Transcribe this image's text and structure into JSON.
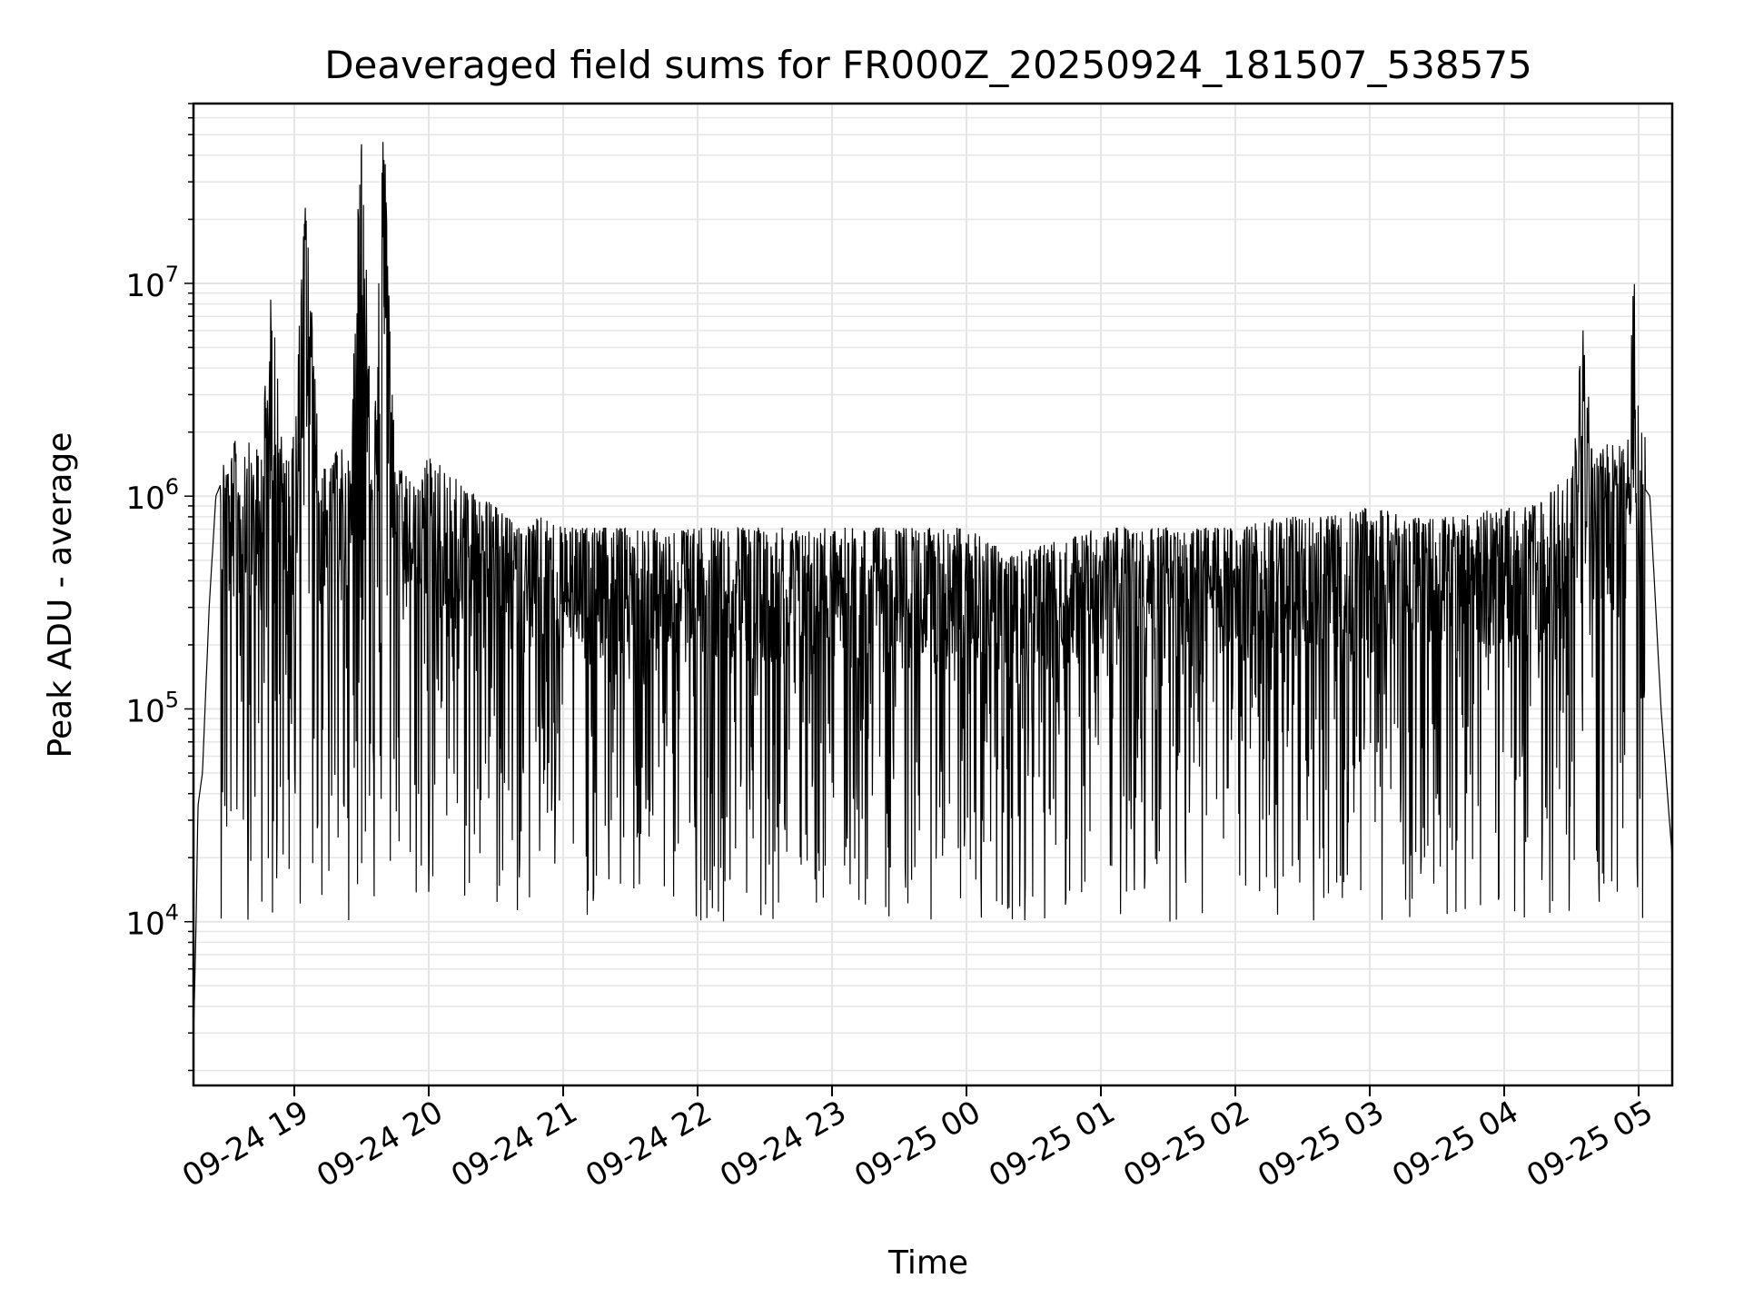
{
  "chart_data": {
    "type": "line",
    "title": "Deaveraged field sums for FR000Z_20250924_181507_538575",
    "xlabel": "Time",
    "ylabel": "Peak ADU - average",
    "yscale": "log",
    "ylim": [
      1700,
      70000000
    ],
    "xlim": [
      "2025-09-24 18:15",
      "2025-09-25 05:15"
    ],
    "grid": "on (major and minor)",
    "line_color": "#000000",
    "grid_color": "#e6e6e6",
    "x_ticks": [
      {
        "time": "2025-09-24 19:00",
        "label": "09-24 19"
      },
      {
        "time": "2025-09-24 20:00",
        "label": "09-24 20"
      },
      {
        "time": "2025-09-24 21:00",
        "label": "09-24 21"
      },
      {
        "time": "2025-09-24 22:00",
        "label": "09-24 22"
      },
      {
        "time": "2025-09-24 23:00",
        "label": "09-24 23"
      },
      {
        "time": "2025-09-25 00:00",
        "label": "09-25 00"
      },
      {
        "time": "2025-09-25 01:00",
        "label": "09-25 01"
      },
      {
        "time": "2025-09-25 02:00",
        "label": "09-25 02"
      },
      {
        "time": "2025-09-25 03:00",
        "label": "09-25 03"
      },
      {
        "time": "2025-09-25 04:00",
        "label": "09-25 04"
      },
      {
        "time": "2025-09-25 05:00",
        "label": "09-25 05"
      }
    ],
    "y_ticks": [
      {
        "value": 10000,
        "base": "10",
        "exp": "4"
      },
      {
        "value": 100000,
        "base": "10",
        "exp": "5"
      },
      {
        "value": 1000000,
        "base": "10",
        "exp": "6"
      },
      {
        "value": 10000000,
        "base": "10",
        "exp": "7"
      }
    ],
    "series": [
      {
        "x": [
          "2025-09-24 18:15",
          "2025-09-24 18:16",
          "2025-09-24 18:17",
          "2025-09-24 18:19",
          "2025-09-24 18:22",
          "2025-09-24 18:25",
          "2025-09-24 18:28",
          "2025-09-24 18:31",
          "2025-09-24 18:35",
          "2025-09-24 18:40",
          "2025-09-24 18:45",
          "2025-09-24 18:50",
          "2025-09-24 18:55",
          "2025-09-24 19:00",
          "2025-09-24 19:05",
          "2025-09-24 19:11",
          "2025-09-24 19:15",
          "2025-09-24 19:20",
          "2025-09-24 19:25",
          "2025-09-24 19:30",
          "2025-09-24 19:35",
          "2025-09-24 19:40",
          "2025-09-24 19:45",
          "2025-09-24 19:50",
          "2025-09-24 19:55",
          "2025-09-24 20:00",
          "2025-09-24 20:10",
          "2025-09-24 20:20",
          "2025-09-24 20:30",
          "2025-09-24 20:40",
          "2025-09-24 20:50",
          "2025-09-24 21:00",
          "2025-09-24 21:20",
          "2025-09-24 21:40",
          "2025-09-24 22:00",
          "2025-09-24 22:20",
          "2025-09-24 22:40",
          "2025-09-24 23:00",
          "2025-09-24 23:20",
          "2025-09-24 23:40",
          "2025-09-25 00:00",
          "2025-09-25 00:20",
          "2025-09-25 00:40",
          "2025-09-25 01:00",
          "2025-09-25 01:20",
          "2025-09-25 01:40",
          "2025-09-25 02:00",
          "2025-09-25 02:20",
          "2025-09-25 02:40",
          "2025-09-25 03:00",
          "2025-09-25 03:20",
          "2025-09-25 03:40",
          "2025-09-25 04:00",
          "2025-09-25 04:10",
          "2025-09-25 04:20",
          "2025-09-25 04:30",
          "2025-09-25 04:35",
          "2025-09-25 04:40",
          "2025-09-25 04:45",
          "2025-09-25 04:50",
          "2025-09-25 04:55",
          "2025-09-25 04:58",
          "2025-09-25 05:00",
          "2025-09-25 05:05",
          "2025-09-25 05:10",
          "2025-09-25 05:15"
        ],
        "y": [
          2800,
          8000,
          35000,
          50000,
          300000,
          1000000,
          1200000,
          900000,
          1100000,
          1000000,
          900000,
          6000000,
          800000,
          1100000,
          16000000,
          900000,
          700000,
          1000000,
          800000,
          45000000,
          600000,
          38000000,
          800000,
          700000,
          600000,
          900000,
          700000,
          600000,
          500000,
          400000,
          450000,
          400000,
          400000,
          400000,
          400000,
          400000,
          400000,
          400000,
          400000,
          400000,
          400000,
          300000,
          350000,
          400000,
          400000,
          400000,
          400000,
          450000,
          450000,
          500000,
          450000,
          450000,
          500000,
          500000,
          600000,
          700000,
          3800000,
          800000,
          1000000,
          1000000,
          900000,
          8000000,
          1200000,
          1000000,
          100000,
          20000
        ],
        "noise": {
          "amplitude": [
            1,
            1
          ],
          "min_value": 10000,
          "band": "dense vertical scatter between ~1e4 and ~1e6"
        }
      }
    ]
  }
}
